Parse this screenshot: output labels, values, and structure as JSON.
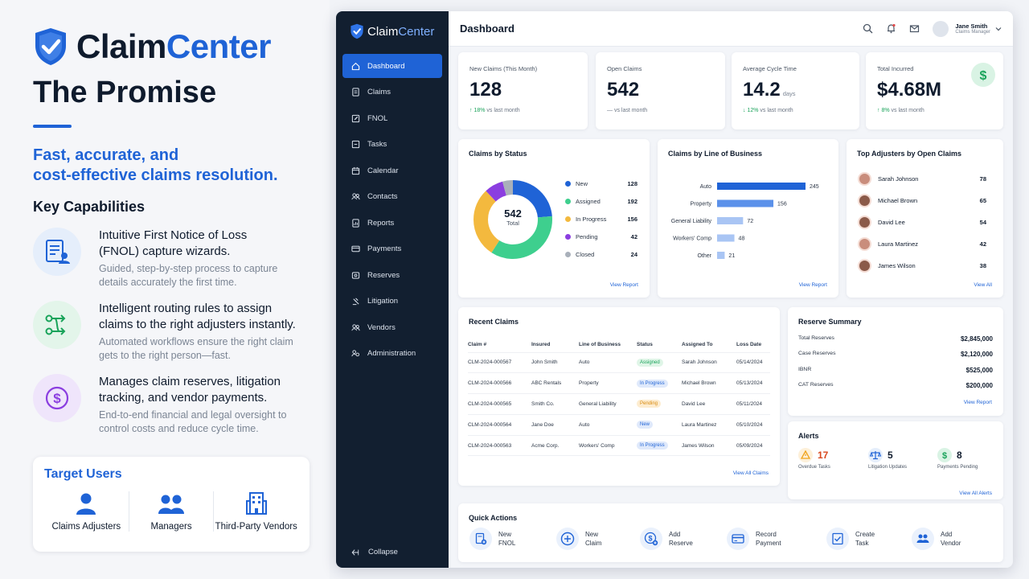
{
  "promo": {
    "brand_part1": "Claim",
    "brand_part2": "Center",
    "headline": "The Promise",
    "tagline_line1": "Fast, accurate, and",
    "tagline_line2": "cost-effective claims resolution.",
    "key_capabilities_title": "Key Capabilities",
    "capabilities": [
      {
        "title_line1": "Intuitive First Notice of Loss",
        "title_line2": "(FNOL) capture wizards.",
        "desc_line1": "Guided, step-by-step process to capture",
        "desc_line2": "details accurately the first time.",
        "icon": "form-user-icon"
      },
      {
        "title_line1": "Intelligent routing rules to assign",
        "title_line2": "claims to the right adjusters instantly.",
        "desc_line1": "Automated workflows ensure the right claim",
        "desc_line2": "gets to the right person—fast.",
        "icon": "routing-icon"
      },
      {
        "title_line1": "Manages claim reserves, litigation",
        "title_line2": "tracking, and vendor payments.",
        "desc_line1": "End-to-end financial and legal oversight to",
        "desc_line2": "control costs and reduce cycle time.",
        "icon": "dollar-icon"
      }
    ],
    "target_users_title": "Target Users",
    "target_users": [
      "Claims Adjusters",
      "Managers",
      "Third-Party Vendors"
    ]
  },
  "app": {
    "logo_part1": "Claim",
    "logo_part2": "Center",
    "nav": [
      {
        "label": "Dashboard",
        "icon": "home-icon",
        "active": true
      },
      {
        "label": "Claims",
        "icon": "document-icon"
      },
      {
        "label": "FNOL",
        "icon": "edit-icon"
      },
      {
        "label": "Tasks",
        "icon": "tasks-icon"
      },
      {
        "label": "Calendar",
        "icon": "calendar-icon"
      },
      {
        "label": "Contacts",
        "icon": "contacts-icon"
      },
      {
        "label": "Reports",
        "icon": "reports-icon"
      },
      {
        "label": "Payments",
        "icon": "payments-icon"
      },
      {
        "label": "Reserves",
        "icon": "reserves-icon"
      },
      {
        "label": "Litigation",
        "icon": "litigation-icon"
      },
      {
        "label": "Vendors",
        "icon": "vendors-icon"
      },
      {
        "label": "Administration",
        "icon": "admin-icon"
      }
    ],
    "collapse_label": "Collapse",
    "page_title": "Dashboard",
    "user": {
      "name": "Jane Smith",
      "role": "Claims Manager"
    },
    "kpis": [
      {
        "label": "New Claims (This Month)",
        "value": "128",
        "unit": "",
        "change_arrow": "↑",
        "change": "18%",
        "change_suffix": " vs last month"
      },
      {
        "label": "Open Claims",
        "value": "542",
        "unit": "",
        "change_arrow": "",
        "change": "—",
        "change_suffix": " vs last month"
      },
      {
        "label": "Average Cycle Time",
        "value": "14.2",
        "unit": "days",
        "change_arrow": "↓",
        "change": "12%",
        "change_suffix": " vs last month"
      },
      {
        "label": "Total Incurred",
        "value": "$4.68M",
        "unit": "",
        "change_arrow": "↑",
        "change": "8%",
        "change_suffix": " vs last month"
      }
    ],
    "claims_by_status": {
      "title": "Claims by Status",
      "total_value": "542",
      "total_label": "Total",
      "link": "View Report"
    },
    "claims_by_lob": {
      "title": "Claims by Line of Business",
      "link": "View Report"
    },
    "top_adjusters": {
      "title": "Top Adjusters by Open Claims",
      "items": [
        {
          "name": "Sarah Johnson",
          "count": "78"
        },
        {
          "name": "Michael Brown",
          "count": "65"
        },
        {
          "name": "David Lee",
          "count": "54"
        },
        {
          "name": "Laura Martinez",
          "count": "42"
        },
        {
          "name": "James Wilson",
          "count": "38"
        }
      ],
      "link": "View All"
    },
    "recent_claims": {
      "title": "Recent Claims",
      "columns": [
        "Claim #",
        "Insured",
        "Line of Business",
        "Status",
        "Assigned To",
        "Loss Date"
      ],
      "rows": [
        [
          "CLM-2024-000567",
          "John Smith",
          "Auto",
          "Assigned",
          "Sarah Johnson",
          "05/14/2024"
        ],
        [
          "CLM-2024-000566",
          "ABC Rentals",
          "Property",
          "In Progress",
          "Michael Brown",
          "05/13/2024"
        ],
        [
          "CLM-2024-000565",
          "Smith Co.",
          "General Liability",
          "Pending",
          "David Lee",
          "05/11/2024"
        ],
        [
          "CLM-2024-000564",
          "Jane Doe",
          "Auto",
          "New",
          "Laura Martinez",
          "05/10/2024"
        ],
        [
          "CLM-2024-000563",
          "Acme Corp.",
          "Workers' Comp",
          "In Progress",
          "James Wilson",
          "05/09/2024"
        ]
      ],
      "link": "View All Claims"
    },
    "reserve_summary": {
      "title": "Reserve Summary",
      "items": [
        {
          "label": "Total Reserves",
          "value": "$2,845,000"
        },
        {
          "label": "Case Reserves",
          "value": "$2,120,000"
        },
        {
          "label": "IBNR",
          "value": "$525,000"
        },
        {
          "label": "CAT Reserves",
          "value": "$200,000"
        }
      ],
      "link": "View Report"
    },
    "alerts": {
      "title": "Alerts",
      "items": [
        {
          "count": "17",
          "label": "Overdue Tasks",
          "icon": "warning-icon"
        },
        {
          "count": "5",
          "label": "Litigation Updates",
          "icon": "scales-icon"
        },
        {
          "count": "8",
          "label": "Payments Pending",
          "icon": "dollar-icon"
        }
      ],
      "link": "View All Alerts"
    },
    "quick_actions": {
      "title": "Quick Actions",
      "items": [
        {
          "label": "New\nFNOL",
          "icon": "new-fnol-icon"
        },
        {
          "label": "New\nClaim",
          "icon": "plus-circle-icon"
        },
        {
          "label": "Add\nReserve",
          "icon": "add-reserve-icon"
        },
        {
          "label": "Record\nPayment",
          "icon": "credit-card-icon"
        },
        {
          "label": "Create\nTask",
          "icon": "create-task-icon"
        },
        {
          "label": "Add\nVendor",
          "icon": "add-vendor-icon"
        }
      ]
    }
  },
  "colors": {
    "brand": "#1f63d6",
    "sidebar": "#121f30",
    "success": "#19a35a",
    "warning": "#f0a21a"
  },
  "chart_data": [
    {
      "type": "pie",
      "title": "Claims by Status",
      "categories": [
        "New",
        "Assigned",
        "In Progress",
        "Pending",
        "Closed"
      ],
      "values": [
        128,
        192,
        156,
        42,
        24
      ],
      "colors": [
        "#1f63d6",
        "#3ecf8e",
        "#f3b93e",
        "#8b3ee0",
        "#a9b0ba"
      ],
      "legend": "right"
    },
    {
      "type": "bar",
      "orientation": "horizontal",
      "title": "Claims by Line of Business",
      "categories": [
        "Auto",
        "Property",
        "General Liability",
        "Workers' Comp",
        "Other"
      ],
      "values": [
        245,
        156,
        72,
        48,
        21
      ],
      "xlim": [
        0,
        245
      ]
    }
  ]
}
